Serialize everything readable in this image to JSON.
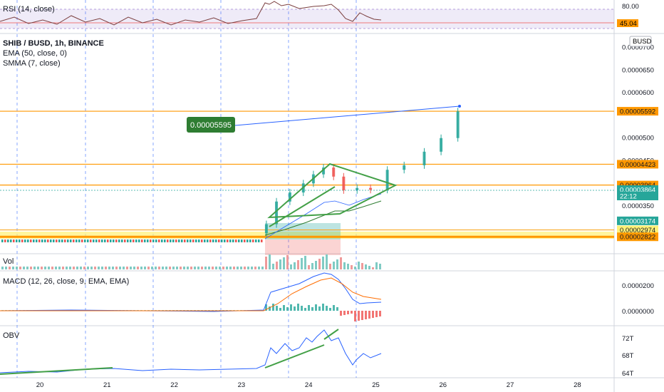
{
  "chart_data": {
    "type": "line",
    "symbol": "SHIB / BUSD, 1h, BINANCE",
    "indicators": [
      "EMA (50, close, 0)",
      "SMMA (7, close)"
    ],
    "currency_button": "BUSD",
    "price_axis": {
      "ticks": [
        "0.0000700",
        "0.0000650",
        "0.0000600",
        "0.0000500",
        "0.0000450",
        "0.0000350"
      ],
      "ylim": [
        2.7e-05,
        7.15e-05
      ]
    },
    "x_ticks": [
      "20",
      "21",
      "22",
      "23",
      "24",
      "25",
      "26",
      "27",
      "28"
    ],
    "price_labels": [
      {
        "value": "0.00005592",
        "color": "#ff9800",
        "text_color": "#131722"
      },
      {
        "value": "0.00004423",
        "color": "#ff9800",
        "text_color": "#131722"
      },
      {
        "value": "0.00003964",
        "color": "#ff9800",
        "text_color": "#131722"
      },
      {
        "value": "0.00003864",
        "color": "#26a69a",
        "text_color": "#ffffff"
      },
      {
        "value": "22:12",
        "color": "#26a69a",
        "text_color": "#ffffff"
      },
      {
        "value": "0.00003174",
        "color": "#26a69a",
        "text_color": "#ffffff"
      },
      {
        "value": "0.00002974",
        "color": "#fff176",
        "text_color": "#131722"
      },
      {
        "value": "0.00002822",
        "color": "#ff9800",
        "text_color": "#131722"
      }
    ],
    "annotation": "0.00005595",
    "horizontal_levels": [
      5.592e-05,
      4.423e-05,
      3.964e-05,
      2.974e-05,
      2.822e-05
    ],
    "candles": [
      {
        "day": 23.35,
        "close": 3.1e-05
      },
      {
        "day": 23.5,
        "close": 3.6e-05
      },
      {
        "day": 23.7,
        "close": 3.8e-05
      },
      {
        "day": 23.9,
        "close": 4e-05
      },
      {
        "day": 24.05,
        "close": 4.2e-05
      },
      {
        "day": 24.2,
        "close": 4.35e-05
      },
      {
        "day": 24.35,
        "close": 4.15e-05
      },
      {
        "day": 24.5,
        "close": 3.85e-05
      },
      {
        "day": 24.7,
        "close": 3.9e-05
      },
      {
        "day": 24.9,
        "close": 3.86e-05
      },
      {
        "day": 25.15,
        "close": 4.3e-05
      },
      {
        "day": 25.4,
        "close": 4.4e-05
      },
      {
        "day": 25.7,
        "close": 4.7e-05
      },
      {
        "day": 25.95,
        "close": 5e-05
      },
      {
        "day": 26.2,
        "close": 5.59e-05
      }
    ],
    "rsi": {
      "label": "RSI (14, close)",
      "ticks": [
        "80.00"
      ],
      "current": "45.04"
    },
    "volume": {
      "label": "Vol"
    },
    "macd": {
      "label": "MACD (12, 26, close, 9, EMA, EMA)",
      "ticks": [
        "0.0000200",
        "0.0000000"
      ]
    },
    "obv": {
      "label": "OBV",
      "ticks": [
        "72T",
        "68T",
        "64T"
      ]
    }
  }
}
